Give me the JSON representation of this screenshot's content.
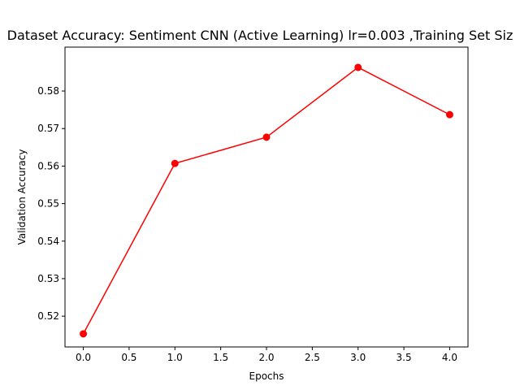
{
  "chart_data": {
    "type": "line",
    "title": "Dataset Accuracy: Sentiment CNN (Active Learning) lr=0.003 ,Training Set Siz",
    "xlabel": "Epochs",
    "ylabel": "Validation Accuracy",
    "x": [
      0,
      1,
      2,
      3,
      4
    ],
    "series": [
      {
        "values": [
          0.5153,
          0.5607,
          0.5677,
          0.5863,
          0.5737
        ],
        "color": "#ff0000",
        "marker": "circle"
      }
    ],
    "xlim": [
      -0.2,
      4.2
    ],
    "ylim": [
      0.5118,
      0.5917
    ],
    "xticks": [
      0.0,
      0.5,
      1.0,
      1.5,
      2.0,
      2.5,
      3.0,
      3.5,
      4.0
    ],
    "xtick_labels": [
      "0.0",
      "0.5",
      "1.0",
      "1.5",
      "2.0",
      "2.5",
      "3.0",
      "3.5",
      "4.0"
    ],
    "yticks": [
      0.52,
      0.53,
      0.54,
      0.55,
      0.56,
      0.57,
      0.58
    ],
    "ytick_labels": [
      "0.52",
      "0.53",
      "0.54",
      "0.55",
      "0.56",
      "0.57",
      "0.58"
    ],
    "grid": false,
    "legend": false
  }
}
